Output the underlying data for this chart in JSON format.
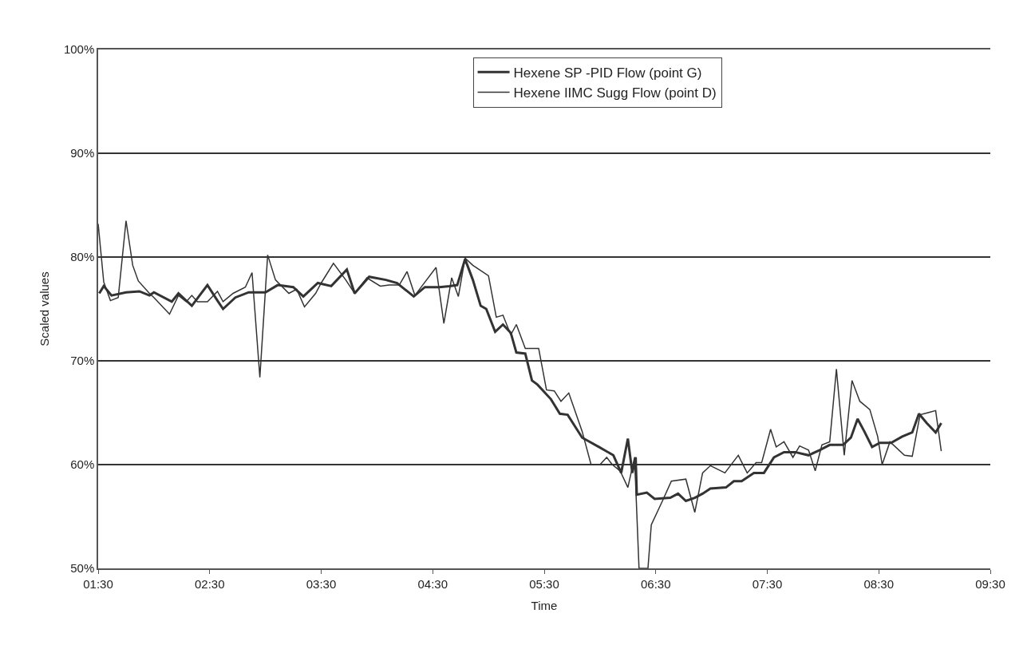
{
  "chart_data": {
    "type": "line",
    "xlabel": "Time",
    "ylabel": "Scaled values",
    "xlim": [
      1.5,
      9.5
    ],
    "xticks": [
      {
        "value": 1.5,
        "label": "01:30"
      },
      {
        "value": 2.5,
        "label": "02:30"
      },
      {
        "value": 3.5,
        "label": "03:30"
      },
      {
        "value": 4.5,
        "label": "04:30"
      },
      {
        "value": 5.5,
        "label": "05:30"
      },
      {
        "value": 6.5,
        "label": "06:30"
      },
      {
        "value": 7.5,
        "label": "07:30"
      },
      {
        "value": 8.5,
        "label": "08:30"
      },
      {
        "value": 9.5,
        "label": "09:30"
      }
    ],
    "ylim": [
      50,
      100
    ],
    "yticks": [
      {
        "value": 50,
        "label": "50%"
      },
      {
        "value": 60,
        "label": "60%"
      },
      {
        "value": 70,
        "label": "70%"
      },
      {
        "value": 80,
        "label": "80%"
      },
      {
        "value": 90,
        "label": "90%"
      },
      {
        "value": 100,
        "label": "100%"
      }
    ],
    "grid": "y",
    "legend": "top right",
    "marker": "none",
    "series": [
      {
        "name": "Hexene SP -PID Flow (point G)",
        "color": "#333333",
        "x": [
          1.51,
          1.55,
          1.62,
          1.75,
          1.87,
          1.96,
          2.0,
          2.16,
          2.22,
          2.34,
          2.48,
          2.57,
          2.62,
          2.73,
          2.85,
          3.0,
          3.11,
          3.25,
          3.34,
          3.47,
          3.59,
          3.73,
          3.8,
          3.93,
          4.08,
          4.18,
          4.33,
          4.43,
          4.56,
          4.65,
          4.72,
          4.79,
          4.86,
          4.93,
          4.98,
          5.06,
          5.13,
          5.2,
          5.25,
          5.33,
          5.39,
          5.44,
          5.56,
          5.64,
          5.71,
          5.84,
          5.99,
          6.12,
          6.19,
          6.25,
          6.29,
          6.32,
          6.33,
          6.42,
          6.49,
          6.63,
          6.7,
          6.77,
          6.85,
          6.92,
          6.99,
          7.13,
          7.2,
          7.27,
          7.38,
          7.47,
          7.56,
          7.65,
          7.75,
          7.87,
          7.97,
          8.06,
          8.18,
          8.25,
          8.31,
          8.37,
          8.44,
          8.51,
          8.61,
          8.71,
          8.8,
          8.86,
          8.93,
          9.01,
          9.06
        ],
        "values": [
          76.5,
          77.2,
          76.3,
          76.6,
          76.7,
          76.3,
          76.6,
          75.7,
          76.5,
          75.3,
          77.3,
          75.8,
          75.0,
          76.1,
          76.6,
          76.6,
          77.3,
          77.1,
          76.2,
          77.5,
          77.2,
          78.8,
          76.5,
          78.1,
          77.8,
          77.5,
          76.2,
          77.1,
          77.1,
          77.2,
          77.3,
          79.8,
          77.8,
          75.3,
          75.0,
          72.8,
          73.5,
          72.7,
          70.8,
          70.7,
          68.1,
          67.7,
          66.3,
          64.9,
          64.8,
          62.6,
          61.7,
          60.9,
          59.2,
          62.5,
          59.2,
          60.7,
          57.1,
          57.3,
          56.7,
          56.8,
          57.2,
          56.5,
          56.8,
          57.2,
          57.7,
          57.8,
          58.4,
          58.4,
          59.2,
          59.2,
          60.7,
          61.2,
          61.2,
          60.9,
          61.4,
          61.9,
          61.9,
          62.6,
          64.4,
          63.2,
          61.7,
          62.1,
          62.1,
          62.7,
          63.1,
          64.9,
          64.0,
          63.1,
          64.0
        ]
      },
      {
        "name": "Hexene IIMC Sugg Flow (point D)",
        "color": "#333333",
        "x": [
          1.5,
          1.55,
          1.61,
          1.68,
          1.75,
          1.81,
          1.86,
          1.96,
          2.0,
          2.14,
          2.22,
          2.29,
          2.34,
          2.39,
          2.48,
          2.57,
          2.62,
          2.71,
          2.82,
          2.88,
          2.95,
          3.02,
          3.09,
          3.21,
          3.28,
          3.35,
          3.45,
          3.5,
          3.61,
          3.72,
          3.8,
          3.91,
          4.03,
          4.11,
          4.2,
          4.27,
          4.34,
          4.41,
          4.53,
          4.6,
          4.67,
          4.73,
          4.79,
          4.86,
          5.0,
          5.07,
          5.13,
          5.2,
          5.25,
          5.33,
          5.45,
          5.52,
          5.59,
          5.65,
          5.72,
          5.84,
          5.92,
          6.0,
          6.06,
          6.11,
          6.18,
          6.25,
          6.31,
          6.35,
          6.43,
          6.46,
          6.56,
          6.64,
          6.77,
          6.85,
          6.92,
          6.99,
          7.12,
          7.24,
          7.32,
          7.4,
          7.45,
          7.53,
          7.58,
          7.65,
          7.73,
          7.79,
          7.87,
          7.93,
          7.99,
          8.06,
          8.12,
          8.19,
          8.26,
          8.33,
          8.42,
          8.49,
          8.53,
          8.6,
          8.73,
          8.8,
          8.87,
          8.94,
          9.01,
          9.06
        ],
        "values": [
          83.2,
          77.6,
          75.8,
          76.1,
          83.5,
          79.2,
          77.7,
          76.5,
          76.1,
          74.5,
          76.3,
          75.7,
          76.3,
          75.7,
          75.7,
          76.7,
          75.7,
          76.5,
          77.1,
          78.5,
          68.4,
          80.2,
          77.8,
          76.5,
          76.9,
          75.2,
          76.5,
          77.5,
          79.4,
          77.8,
          76.5,
          78.0,
          77.2,
          77.3,
          77.3,
          78.6,
          76.3,
          77.3,
          79.0,
          73.6,
          78.0,
          76.2,
          79.9,
          79.2,
          78.2,
          74.2,
          74.4,
          72.5,
          73.5,
          71.2,
          71.2,
          67.2,
          67.1,
          66.1,
          66.9,
          63.2,
          60.0,
          60.0,
          60.7,
          60.0,
          59.4,
          57.8,
          60.7,
          50.0,
          50.0,
          54.2,
          56.5,
          58.4,
          58.6,
          55.4,
          59.2,
          59.9,
          59.2,
          60.9,
          59.2,
          60.2,
          60.2,
          63.4,
          61.7,
          62.2,
          60.7,
          61.8,
          61.4,
          59.4,
          61.9,
          62.2,
          69.2,
          60.9,
          68.1,
          66.1,
          65.3,
          62.7,
          60.0,
          62.2,
          60.9,
          60.8,
          64.8,
          65.0,
          65.2,
          61.3
        ]
      }
    ]
  }
}
